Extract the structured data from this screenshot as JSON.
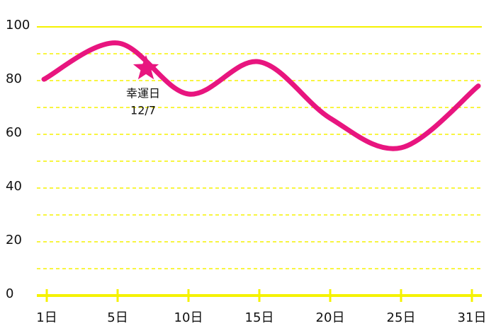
{
  "chart_data": {
    "type": "line",
    "categories": [
      "1日",
      "5日",
      "10日",
      "15日",
      "20日",
      "25日",
      "31日"
    ],
    "series": [
      {
        "color": "#e8157f",
        "values": [
          80.5,
          94,
          75,
          87,
          66,
          55,
          78
        ]
      }
    ],
    "ylim": [
      0,
      100
    ],
    "yticks": [
      0,
      20,
      40,
      60,
      80,
      100
    ],
    "yminor": [
      10,
      30,
      50,
      70,
      90
    ],
    "grid": true,
    "grid_color": "#f5f200",
    "annotation": {
      "text": "幸運日",
      "date": "12/7",
      "value": 84.5
    }
  }
}
